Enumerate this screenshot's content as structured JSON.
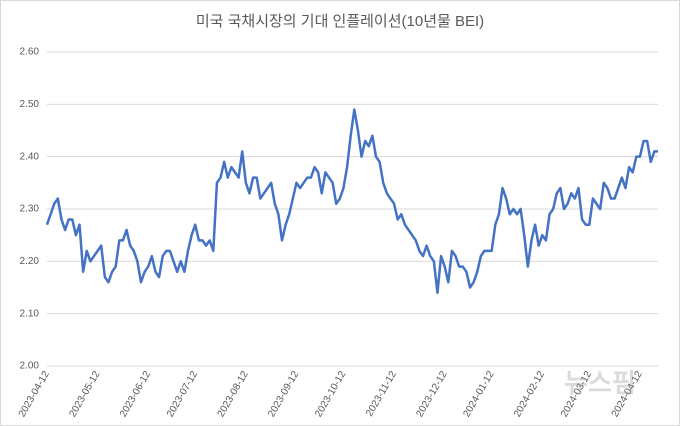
{
  "chart_data": {
    "type": "line",
    "title": "미국 국채시장의 기대 인플레이션(10년물 BEI)",
    "watermark": "뉴스핌",
    "categories": [
      "2023-04-12",
      null,
      null,
      null,
      null,
      null,
      null,
      null,
      null,
      null,
      null,
      null,
      null,
      null,
      "2023-05-12",
      null,
      null,
      null,
      null,
      null,
      null,
      null,
      null,
      null,
      null,
      null,
      null,
      null,
      "2023-06-12",
      null,
      null,
      null,
      null,
      null,
      null,
      null,
      null,
      null,
      null,
      null,
      null,
      "2023-07-12",
      null,
      null,
      null,
      null,
      null,
      null,
      null,
      null,
      null,
      null,
      null,
      null,
      null,
      "2023-08-12",
      null,
      null,
      null,
      null,
      null,
      null,
      null,
      null,
      null,
      null,
      null,
      null,
      null,
      "2023-09-12",
      null,
      null,
      null,
      null,
      null,
      null,
      null,
      null,
      null,
      null,
      null,
      null,
      "2023-10-12",
      null,
      null,
      null,
      null,
      null,
      null,
      null,
      null,
      null,
      null,
      null,
      null,
      null,
      "2023-11-12",
      null,
      null,
      null,
      null,
      null,
      null,
      null,
      null,
      null,
      null,
      null,
      null,
      null,
      "2023-12-12",
      null,
      null,
      null,
      null,
      null,
      null,
      null,
      null,
      null,
      null,
      null,
      null,
      "2024-01-12",
      null,
      null,
      null,
      null,
      null,
      null,
      null,
      null,
      null,
      null,
      null,
      null,
      null,
      "2024-02-12",
      null,
      null,
      null,
      null,
      null,
      null,
      null,
      null,
      null,
      null,
      null,
      null,
      "2024-03-12",
      null,
      null,
      null,
      null,
      null,
      null,
      null,
      null,
      null,
      null,
      null,
      null,
      null,
      "2024-04-12",
      null,
      null,
      null,
      null,
      null
    ],
    "series": [
      {
        "color": "#4472c4",
        "values": [
          2.27,
          2.29,
          2.31,
          2.32,
          2.28,
          2.26,
          2.28,
          2.28,
          2.25,
          2.27,
          2.18,
          2.22,
          2.2,
          2.21,
          2.22,
          2.23,
          2.17,
          2.16,
          2.18,
          2.19,
          2.24,
          2.24,
          2.26,
          2.23,
          2.22,
          2.2,
          2.16,
          2.18,
          2.19,
          2.21,
          2.18,
          2.17,
          2.21,
          2.22,
          2.22,
          2.2,
          2.18,
          2.2,
          2.18,
          2.22,
          2.25,
          2.27,
          2.24,
          2.24,
          2.23,
          2.24,
          2.22,
          2.35,
          2.36,
          2.39,
          2.36,
          2.38,
          2.37,
          2.36,
          2.41,
          2.35,
          2.33,
          2.36,
          2.36,
          2.32,
          2.33,
          2.34,
          2.35,
          2.31,
          2.29,
          2.24,
          2.27,
          2.29,
          2.32,
          2.35,
          2.34,
          2.35,
          2.36,
          2.36,
          2.38,
          2.37,
          2.33,
          2.37,
          2.36,
          2.35,
          2.31,
          2.32,
          2.34,
          2.38,
          2.44,
          2.49,
          2.45,
          2.4,
          2.43,
          2.42,
          2.44,
          2.4,
          2.39,
          2.35,
          2.33,
          2.32,
          2.31,
          2.28,
          2.29,
          2.27,
          2.26,
          2.25,
          2.24,
          2.22,
          2.21,
          2.23,
          2.21,
          2.2,
          2.14,
          2.21,
          2.19,
          2.16,
          2.22,
          2.21,
          2.19,
          2.19,
          2.18,
          2.15,
          2.16,
          2.18,
          2.21,
          2.22,
          2.22,
          2.22,
          2.27,
          2.29,
          2.34,
          2.32,
          2.29,
          2.3,
          2.29,
          2.3,
          2.25,
          2.19,
          2.24,
          2.27,
          2.23,
          2.25,
          2.24,
          2.29,
          2.3,
          2.33,
          2.34,
          2.3,
          2.31,
          2.33,
          2.32,
          2.34,
          2.28,
          2.27,
          2.27,
          2.32,
          2.31,
          2.3,
          2.35,
          2.34,
          2.32,
          2.32,
          2.34,
          2.36,
          2.34,
          2.38,
          2.37,
          2.4,
          2.4,
          2.43,
          2.43,
          2.39,
          2.41,
          2.41
        ]
      }
    ],
    "ylim": [
      2.0,
      2.6
    ],
    "yticks": [
      {
        "value": 2.0,
        "label": "2.00"
      },
      {
        "value": 2.1,
        "label": "2.10"
      },
      {
        "value": 2.2,
        "label": "2.20"
      },
      {
        "value": 2.3,
        "label": "2.30"
      },
      {
        "value": 2.4,
        "label": "2.40"
      },
      {
        "value": 2.5,
        "label": "2.50"
      },
      {
        "value": 2.6,
        "label": "2.60"
      }
    ],
    "grid": true
  }
}
